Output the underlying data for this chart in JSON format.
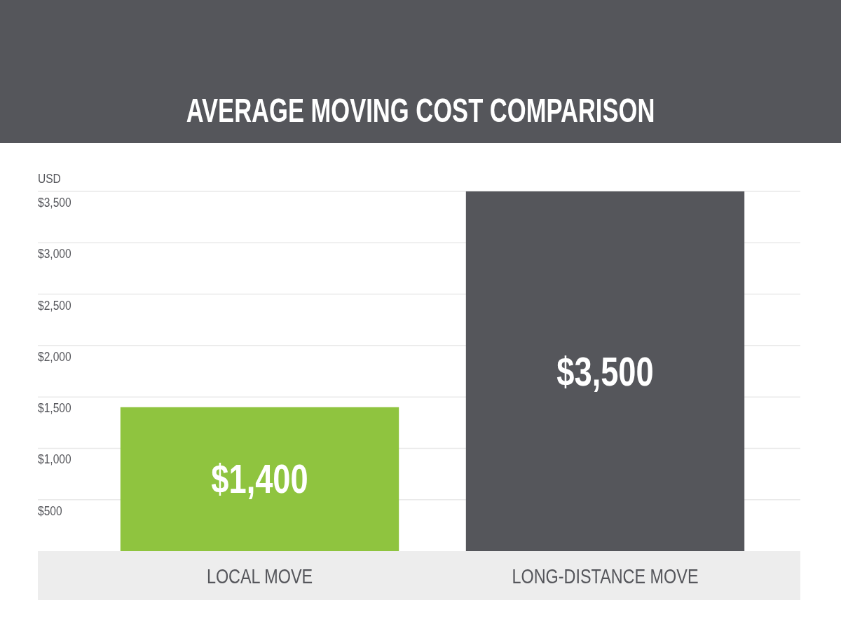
{
  "chart_data": {
    "type": "bar",
    "title": "AVERAGE MOVING COST COMPARISON",
    "ylabel": "USD",
    "categories": [
      "LOCAL MOVE",
      "LONG-DISTANCE MOVE"
    ],
    "values": [
      1400,
      3500
    ],
    "colors": [
      "#8fc43f",
      "#55565b"
    ],
    "value_labels": [
      "$1,400",
      "$3,500"
    ],
    "ylim": [
      0,
      3500
    ],
    "yticks": [
      {
        "value": 500,
        "label": "$500"
      },
      {
        "value": 1000,
        "label": "$1,000"
      },
      {
        "value": 1500,
        "label": "$1,500"
      },
      {
        "value": 2000,
        "label": "$2,000"
      },
      {
        "value": 2500,
        "label": "$2,500"
      },
      {
        "value": 3000,
        "label": "$3,000"
      },
      {
        "value": 3500,
        "label": "$3,500"
      }
    ],
    "grid": "y"
  }
}
